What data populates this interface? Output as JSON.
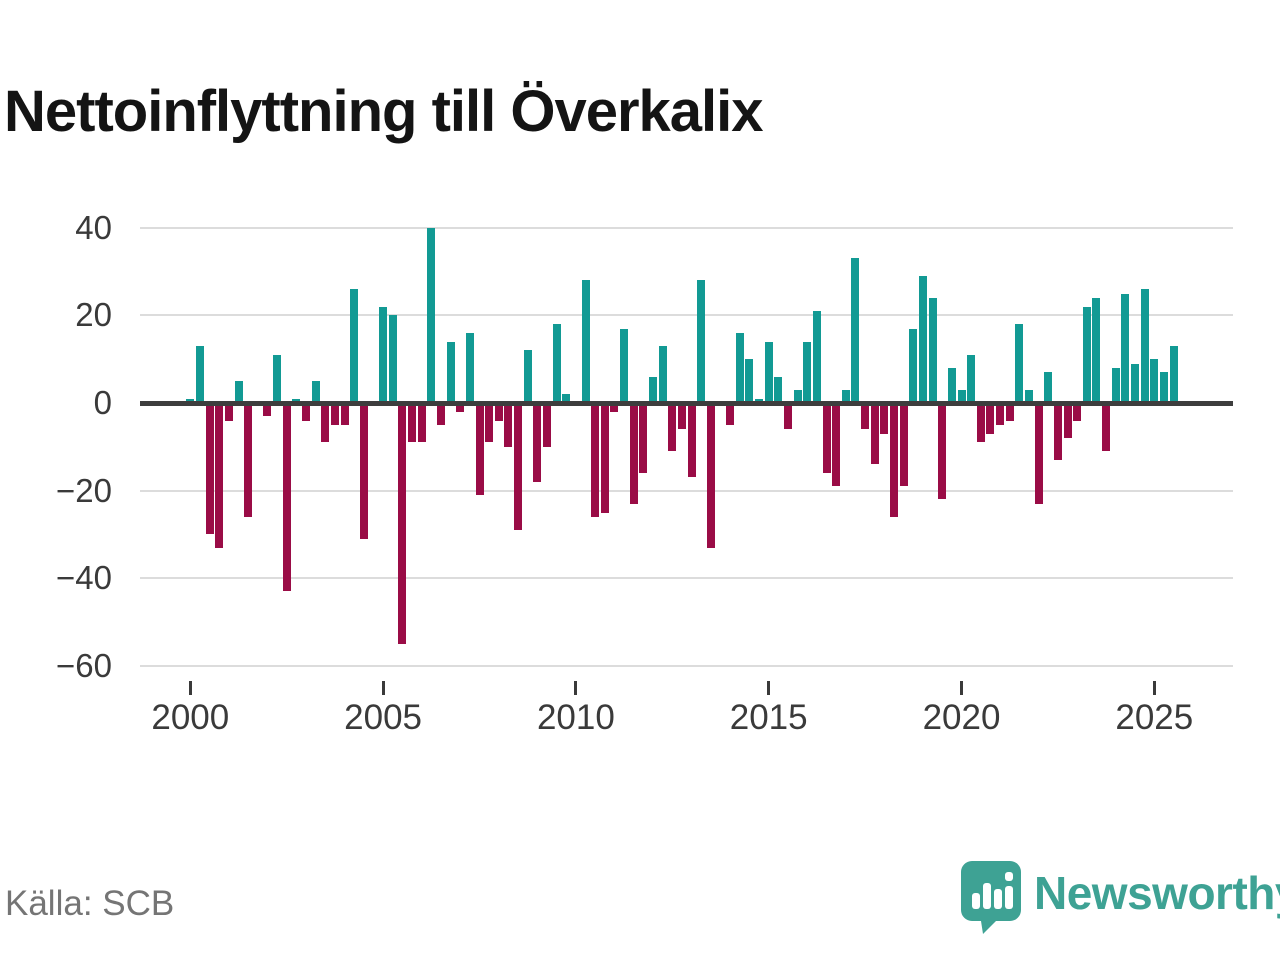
{
  "page": {
    "title": "Nettoinflyttning till Överkalix",
    "source": "Källa: SCB",
    "brand": "Newsworthy"
  },
  "chart_data": {
    "type": "bar",
    "title": "Nettoinflyttning till Överkalix",
    "x_start": "2000-Q1",
    "frequency": "quarterly",
    "values": [
      1,
      13,
      -30,
      -33,
      -4,
      5,
      -26,
      0,
      -3,
      11,
      -43,
      1,
      -4,
      5,
      -9,
      -5,
      -5,
      26,
      -31,
      0,
      22,
      20,
      -55,
      -9,
      -9,
      40,
      -5,
      14,
      -2,
      16,
      -21,
      -9,
      -4,
      -10,
      -29,
      12,
      -18,
      -10,
      18,
      2,
      0,
      28,
      -26,
      -25,
      -2,
      17,
      -23,
      -16,
      6,
      13,
      -11,
      -6,
      -17,
      28,
      -33,
      0,
      -5,
      16,
      10,
      1,
      14,
      6,
      -6,
      3,
      14,
      21,
      -16,
      -19,
      3,
      33,
      -6,
      -14,
      -7,
      -26,
      -19,
      17,
      29,
      24,
      -22,
      8,
      3,
      11,
      -9,
      -7,
      -5,
      -4,
      18,
      3,
      -23,
      7,
      -13,
      -8,
      -4,
      22,
      24,
      -11,
      8,
      25,
      9,
      26,
      10,
      7,
      13
    ],
    "ylim": [
      -60,
      40
    ],
    "ytick_values": [
      40,
      20,
      0,
      -20,
      -40,
      -60
    ],
    "ytick_labels": [
      "40",
      "20",
      "0",
      "−20",
      "−40",
      "−60"
    ],
    "xtick_years": [
      2000,
      2005,
      2010,
      2015,
      2020,
      2025
    ],
    "xtick_labels": [
      "2000",
      "2005",
      "2010",
      "2015",
      "2020",
      "2025"
    ],
    "grid": true,
    "legend": false,
    "colors": {
      "positive": "#129a94",
      "negative": "#9a0c46",
      "grid": "#dcdcdc",
      "zero_line": "#3d3d3d",
      "tick_text": "#3a3a3a",
      "brand": "#3EA294"
    }
  }
}
